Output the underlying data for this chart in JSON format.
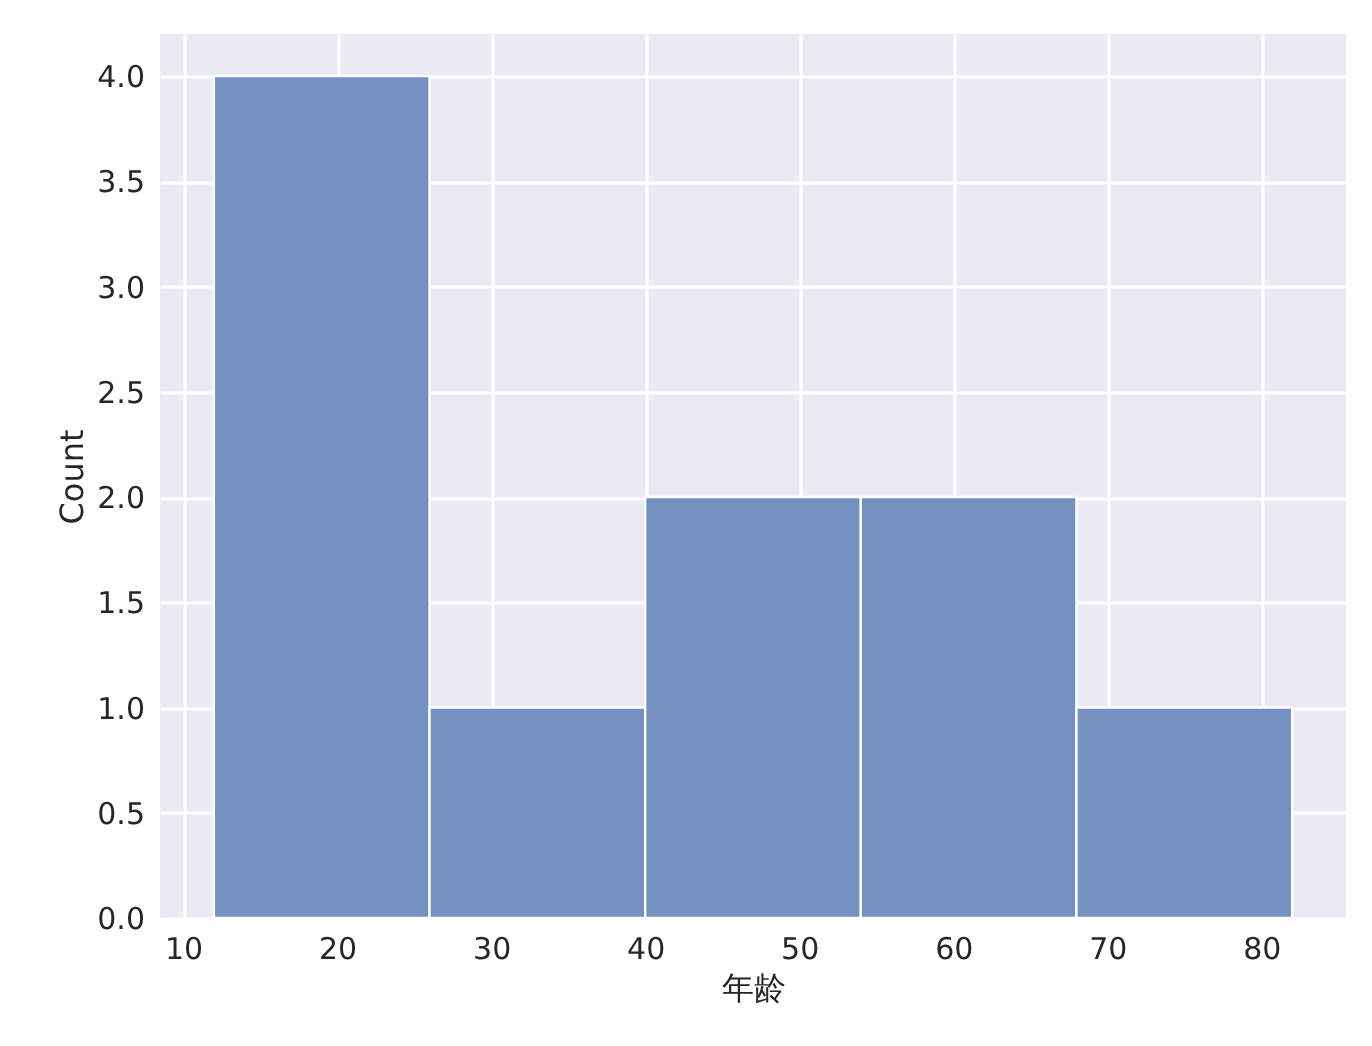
{
  "chart_data": {
    "type": "histogram",
    "xlabel": "年龄",
    "ylabel": "Count",
    "bins": [
      12,
      26,
      40,
      54,
      68,
      82
    ],
    "values": [
      4,
      1,
      2,
      2,
      1
    ],
    "color": "#7390c0",
    "xlim": [
      8.5,
      85.5
    ],
    "xticks": [
      10,
      20,
      30,
      40,
      50,
      60,
      70,
      80
    ],
    "ylim": [
      0,
      4.2
    ],
    "yticks": [
      {
        "value": 0,
        "label": "0.0"
      },
      {
        "value": 0.5,
        "label": "0.5"
      },
      {
        "value": 1,
        "label": "1.0"
      },
      {
        "value": 1.5,
        "label": "1.5"
      },
      {
        "value": 2,
        "label": "2.0"
      },
      {
        "value": 2.5,
        "label": "2.5"
      },
      {
        "value": 3,
        "label": "3.0"
      },
      {
        "value": 3.5,
        "label": "3.5"
      },
      {
        "value": 4,
        "label": "4.0"
      }
    ],
    "grid": true
  }
}
